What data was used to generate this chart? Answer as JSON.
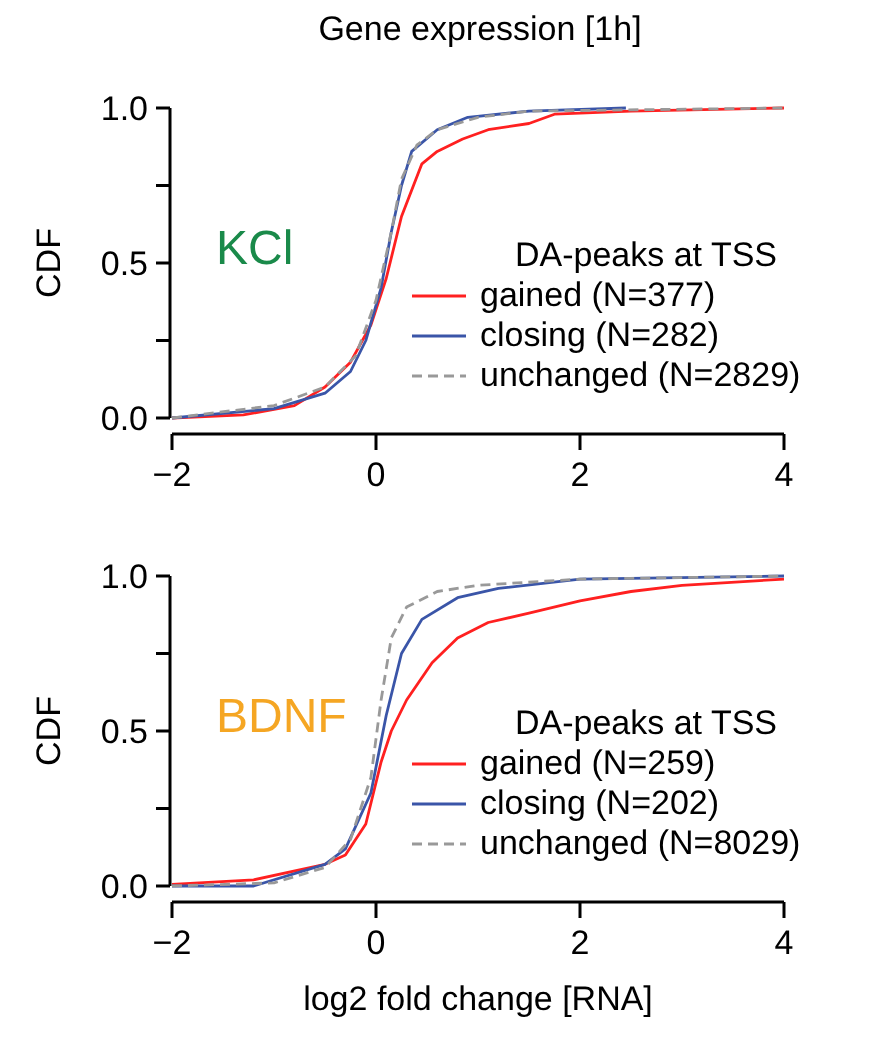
{
  "chart_data": [
    {
      "type": "line",
      "title": "Gene expression [1h]",
      "ylabel": "CDF",
      "legend_title": "DA-peaks at TSS",
      "annotations": [
        "KCl"
      ],
      "legend": "bottom right",
      "xlim": [
        -2,
        4
      ],
      "xticks": [
        {
          "value": -2,
          "label": "−2"
        },
        0,
        2,
        4
      ],
      "ylim": [
        0,
        1
      ],
      "yticks": [
        {
          "value": 0,
          "label": "0.0"
        },
        {
          "value": 0.25,
          "label": null
        },
        {
          "value": 0.5,
          "label": "0.5"
        },
        {
          "value": 0.75,
          "label": null
        },
        {
          "value": 1,
          "label": "1.0"
        }
      ],
      "series": [
        {
          "name": "gained (N=377)",
          "color": "#ff2020",
          "line_style": "solid",
          "x": [
            -2,
            -1.3,
            -0.8,
            -0.5,
            -0.25,
            -0.05,
            0.1,
            0.25,
            0.45,
            0.6,
            0.85,
            1.1,
            1.5,
            1.75,
            2.5,
            4
          ],
          "values": [
            0,
            0.01,
            0.04,
            0.1,
            0.18,
            0.3,
            0.45,
            0.65,
            0.82,
            0.86,
            0.9,
            0.93,
            0.95,
            0.98,
            0.99,
            1
          ]
        },
        {
          "name": "closing (N=282)",
          "color": "#3a55a8",
          "line_style": "solid",
          "x": [
            -2,
            -1,
            -0.5,
            -0.25,
            -0.1,
            0.05,
            0.15,
            0.25,
            0.35,
            0.6,
            0.9,
            1.5,
            2.45
          ],
          "values": [
            0,
            0.03,
            0.08,
            0.15,
            0.25,
            0.42,
            0.6,
            0.75,
            0.86,
            0.93,
            0.97,
            0.99,
            1
          ]
        },
        {
          "name": "unchanged (N=2829)",
          "color": "#999999",
          "line_style": "dashed",
          "x": [
            -2,
            -1,
            -0.5,
            -0.2,
            0,
            0.15,
            0.25,
            0.4,
            0.6,
            1,
            1.5,
            4
          ],
          "values": [
            0,
            0.04,
            0.1,
            0.2,
            0.38,
            0.6,
            0.77,
            0.88,
            0.93,
            0.97,
            0.99,
            1
          ]
        }
      ]
    },
    {
      "type": "line",
      "xlabel": "log2 fold change [RNA]",
      "ylabel": "CDF",
      "legend_title": "DA-peaks at TSS",
      "annotations": [
        "BDNF"
      ],
      "legend": "bottom right",
      "xlim": [
        -2,
        4
      ],
      "xticks": [
        {
          "value": -2,
          "label": "−2"
        },
        0,
        2,
        4
      ],
      "ylim": [
        0,
        1
      ],
      "yticks": [
        {
          "value": 0,
          "label": "0.0"
        },
        {
          "value": 0.25,
          "label": null
        },
        {
          "value": 0.5,
          "label": "0.5"
        },
        {
          "value": 0.75,
          "label": null
        },
        {
          "value": 1,
          "label": "1.0"
        }
      ],
      "series": [
        {
          "name": "gained (N=259)",
          "color": "#ff2020",
          "line_style": "solid",
          "x": [
            -2,
            -1.2,
            -0.5,
            -0.3,
            -0.1,
            0.05,
            0.15,
            0.3,
            0.55,
            0.8,
            1.1,
            1.5,
            2,
            2.5,
            3,
            4
          ],
          "values": [
            0.005,
            0.02,
            0.07,
            0.1,
            0.2,
            0.4,
            0.5,
            0.6,
            0.72,
            0.8,
            0.85,
            0.88,
            0.92,
            0.95,
            0.97,
            0.99
          ]
        },
        {
          "name": "closing (N=202)",
          "color": "#3a55a8",
          "line_style": "solid",
          "x": [
            -2,
            -1.2,
            -0.5,
            -0.3,
            -0.05,
            0.1,
            0.25,
            0.45,
            0.8,
            1.2,
            2,
            4
          ],
          "values": [
            0,
            0,
            0.07,
            0.12,
            0.3,
            0.55,
            0.75,
            0.86,
            0.93,
            0.96,
            0.99,
            1
          ]
        },
        {
          "name": "unchanged (N=8029)",
          "color": "#999999",
          "line_style": "dashed",
          "x": [
            -2,
            -1,
            -0.5,
            -0.25,
            -0.05,
            0.05,
            0.15,
            0.3,
            0.6,
            1,
            2,
            4
          ],
          "values": [
            0,
            0.01,
            0.06,
            0.15,
            0.35,
            0.6,
            0.8,
            0.9,
            0.95,
            0.97,
            0.99,
            1
          ]
        }
      ]
    }
  ]
}
